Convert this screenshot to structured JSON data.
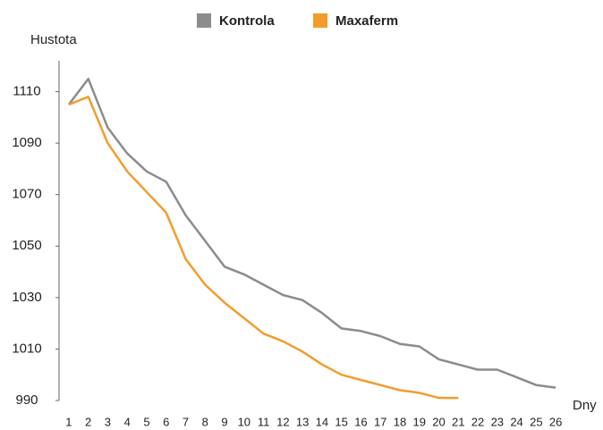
{
  "chart_data": {
    "type": "line",
    "y_label": "Hustota",
    "x_label": "Dny",
    "categories": [
      "1",
      "2",
      "3",
      "4",
      "5",
      "6",
      "7",
      "8",
      "9",
      "10",
      "11",
      "12",
      "13",
      "14",
      "15",
      "16",
      "17",
      "18",
      "19",
      "20",
      "21",
      "22",
      "23",
      "24",
      "25",
      "26"
    ],
    "series": [
      {
        "name": "Kontrola",
        "color": "#8c8c8e",
        "values": [
          1105,
          1115,
          1096,
          1086,
          1079,
          1075,
          1062,
          1052,
          1042,
          1039,
          1035,
          1031,
          1029,
          1024,
          1018,
          1017,
          1015,
          1012,
          1011,
          1006,
          1004,
          1002,
          1002,
          999,
          996,
          995
        ]
      },
      {
        "name": "Maxaferm",
        "color": "#f39c2c",
        "values": [
          1105,
          1108,
          1090,
          1079,
          1071,
          1063,
          1045,
          1035,
          1028,
          1022,
          1016,
          1013,
          1009,
          1004,
          1000,
          998,
          996,
          994,
          993,
          991,
          991,
          null,
          null,
          null,
          null,
          null
        ]
      }
    ],
    "ylim": [
      990,
      1122
    ],
    "yticks": [
      990,
      1010,
      1030,
      1050,
      1070,
      1090,
      1110
    ],
    "grid": false
  }
}
